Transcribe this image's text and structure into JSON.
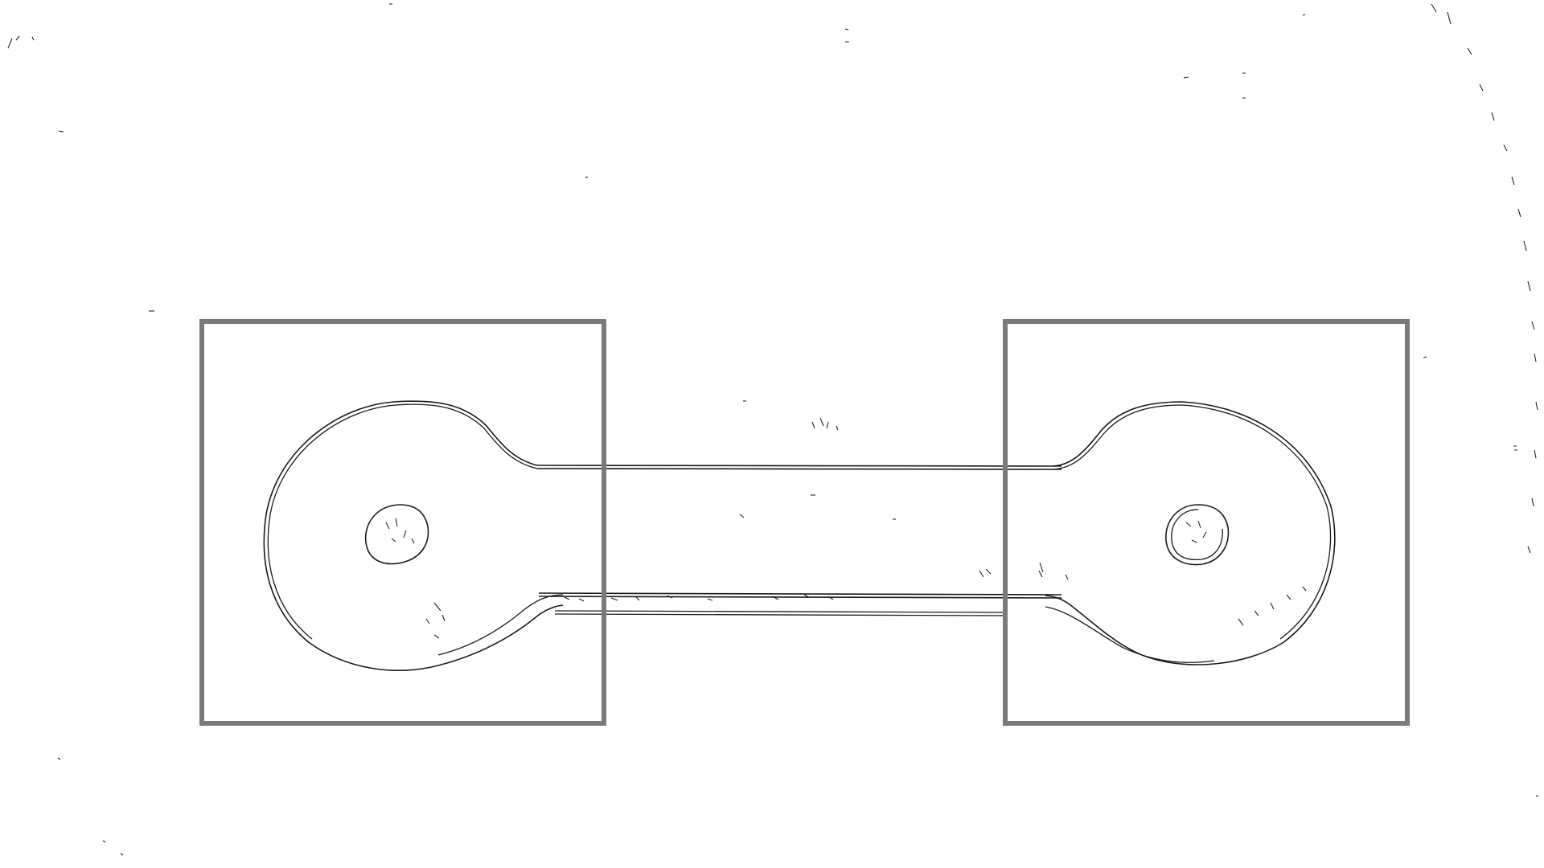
{
  "image": {
    "kind": "edge-detection-map",
    "subject": "dumbbell-shaped-outline",
    "background_color": "#ffffff",
    "edge_color": "#1a1a1a",
    "box_color": "#7a7a7a",
    "region_boxes": [
      {
        "label": ""
      },
      {
        "label": ""
      }
    ]
  }
}
